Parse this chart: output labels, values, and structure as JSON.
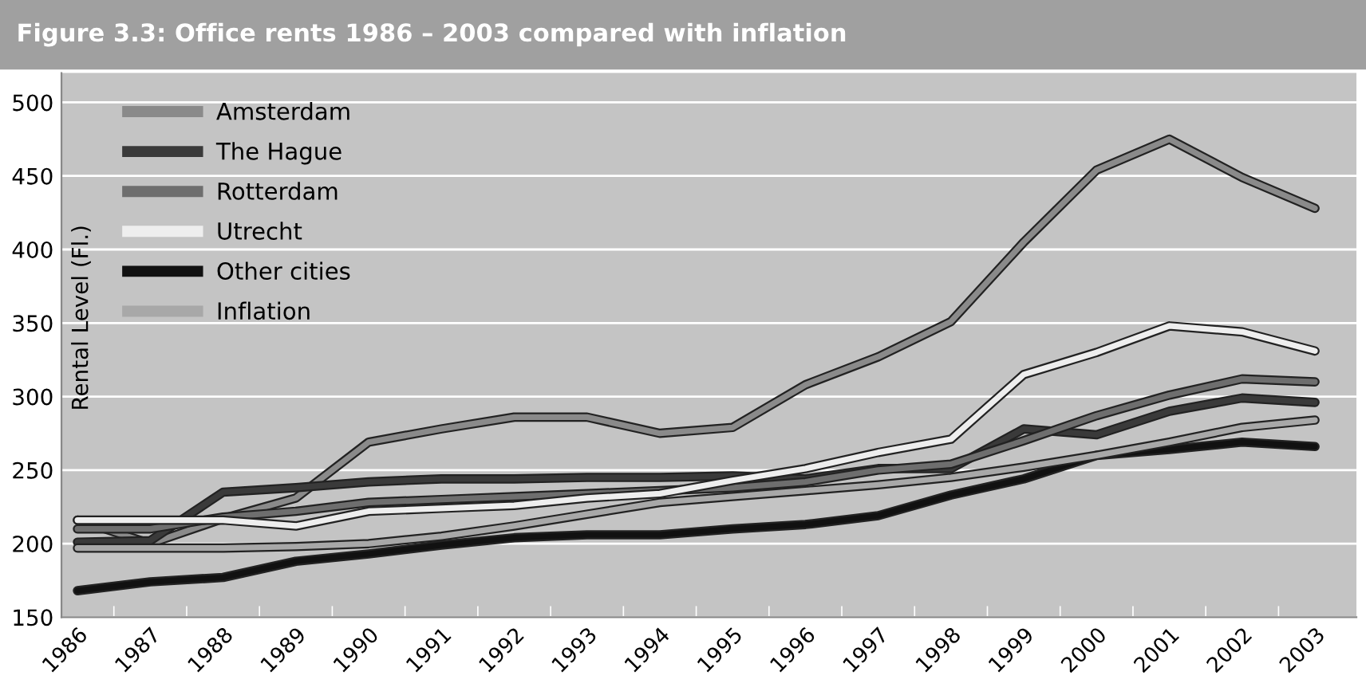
{
  "chart_data": {
    "type": "line",
    "title": "Figure 3.3: Office rents 1986 – 2003 compared with inflation",
    "ylabel": "Rental Level (Fl.)",
    "categories": [
      "1986",
      "1987",
      "1988",
      "1989",
      "1990",
      "1991",
      "1992",
      "1993",
      "1994",
      "1995",
      "1996",
      "1997",
      "1998",
      "1999",
      "2000",
      "2001",
      "2002",
      "2003"
    ],
    "series": [
      {
        "name": "Amsterdam",
        "color": "#8a8a8a",
        "values": [
          216,
          200,
          217,
          231,
          269,
          278,
          286,
          286,
          275,
          279,
          308,
          327,
          351,
          405,
          454,
          475,
          449,
          428
        ]
      },
      {
        "name": "The Hague",
        "color": "#3a3a3a",
        "values": [
          201,
          202,
          235,
          238,
          242,
          244,
          244,
          245,
          245,
          246,
          244,
          251,
          251,
          278,
          274,
          290,
          299,
          296
        ]
      },
      {
        "name": "Rotterdam",
        "color": "#6e6e6e",
        "values": [
          210,
          210,
          218,
          222,
          228,
          230,
          232,
          234,
          236,
          238,
          242,
          250,
          254,
          270,
          287,
          301,
          312,
          310
        ]
      },
      {
        "name": "Utrecht",
        "color": "#eeeeee",
        "values": [
          216,
          216,
          216,
          212,
          222,
          224,
          226,
          231,
          234,
          243,
          251,
          262,
          271,
          315,
          330,
          348,
          344,
          331
        ]
      },
      {
        "name": "Other cities",
        "color": "#111111",
        "values": [
          168,
          174,
          177,
          188,
          193,
          199,
          204,
          206,
          206,
          210,
          213,
          219,
          233,
          244,
          260,
          264,
          269,
          266
        ]
      },
      {
        "name": "Inflation",
        "color": "#a8a8a8",
        "values": [
          197,
          197,
          197,
          198,
          200,
          205,
          212,
          220,
          228,
          232,
          236,
          240,
          245,
          252,
          260,
          269,
          279,
          284
        ]
      }
    ],
    "ylim": [
      150,
      520
    ],
    "yticks": [
      150,
      200,
      250,
      300,
      350,
      400,
      450,
      500
    ],
    "grid": "y",
    "legend": "top left"
  }
}
